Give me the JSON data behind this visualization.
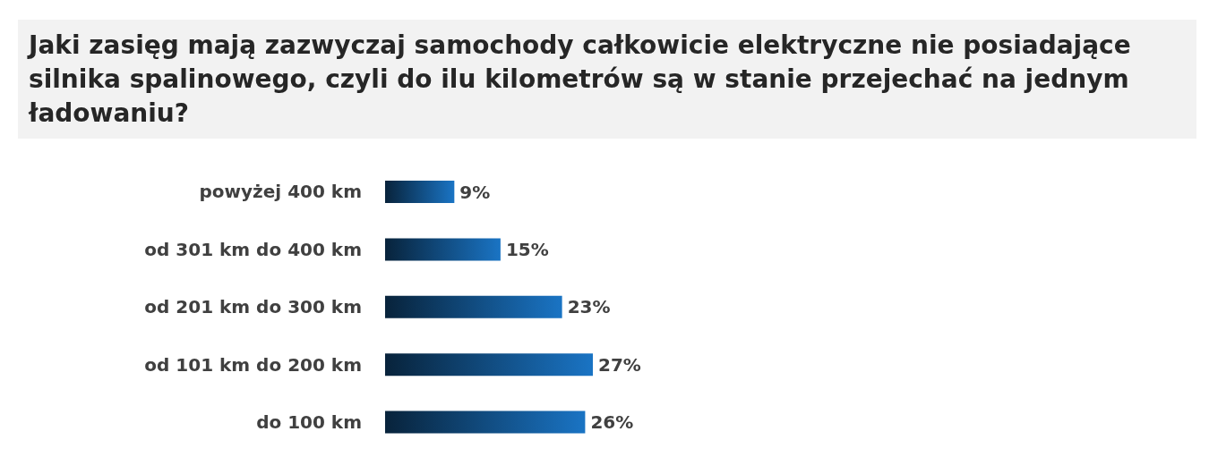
{
  "chart_data": {
    "type": "bar",
    "orientation": "horizontal",
    "title": "Jaki zasięg mają zazwyczaj samochody całkowicie elektryczne nie posiadające silnika spalinowego, czyli do ilu kilometrów są w stanie przejechać na jednym ładowaniu?",
    "categories": [
      "powyżej 400 km",
      "od 301 km do 400 km",
      "od 201 km do 300 km",
      "od 101 km do 200 km",
      "do 100 km"
    ],
    "values": [
      9,
      15,
      23,
      27,
      26
    ],
    "value_labels": [
      "9%",
      "15%",
      "23%",
      "27%",
      "26%"
    ],
    "color": "#1a74c4",
    "grid": false,
    "legend": false
  }
}
